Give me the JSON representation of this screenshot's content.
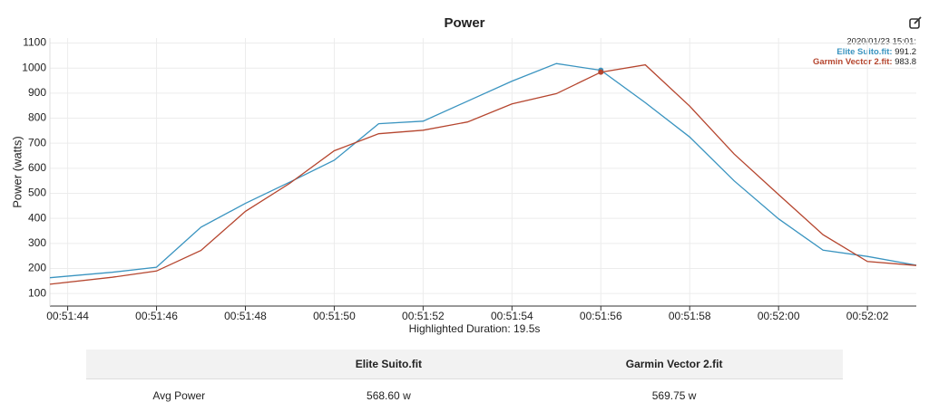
{
  "chart_data": {
    "type": "line",
    "title": "Power",
    "y_label": "Power (watts)",
    "x_label": "Highlighted Duration: 19.5s",
    "xlim": [
      3103.6,
      3123.1
    ],
    "ylim": [
      50,
      1120
    ],
    "grid": true,
    "xticks": [
      {
        "value": 3104,
        "label": "00:51:44"
      },
      {
        "value": 3106,
        "label": "00:51:46"
      },
      {
        "value": 3108,
        "label": "00:51:48"
      },
      {
        "value": 3110,
        "label": "00:51:50"
      },
      {
        "value": 3112,
        "label": "00:51:52"
      },
      {
        "value": 3114,
        "label": "00:51:54"
      },
      {
        "value": 3116,
        "label": "00:51:56"
      },
      {
        "value": 3118,
        "label": "00:51:58"
      },
      {
        "value": 3120,
        "label": "00:52:00"
      },
      {
        "value": 3122,
        "label": "00:52:02"
      }
    ],
    "yticks": [
      100,
      200,
      300,
      400,
      500,
      600,
      700,
      800,
      900,
      1000,
      1100
    ],
    "x": [
      3103.6,
      3105,
      3106,
      3107,
      3108,
      3109,
      3110,
      3111,
      3112,
      3113,
      3114,
      3115,
      3116,
      3117,
      3118,
      3119,
      3120,
      3121,
      3122,
      3123.1
    ],
    "series": [
      {
        "name": "Elite Suito.fit",
        "color": "#3a94c0",
        "values": [
          163,
          185,
          205,
          365,
          460,
          545,
          632,
          778,
          788,
          868,
          948,
          1018,
          991.2,
          862,
          725,
          550,
          398,
          273,
          248,
          213
        ]
      },
      {
        "name": "Garmin Vector 2.fit",
        "color": "#b5452e",
        "values": [
          137,
          165,
          190,
          272,
          428,
          540,
          670,
          738,
          752,
          785,
          857,
          898,
          983.8,
          1013,
          848,
          657,
          495,
          335,
          228,
          212
        ]
      }
    ],
    "highlight_index": 12,
    "tooltip": {
      "title": "2020/01/23 15:01:",
      "rows": [
        "Elite Suito.fit:",
        "Garmin Vector 2.fit:"
      ]
    }
  },
  "table": {
    "columns": [
      "Elite Suito.fit",
      "Garmin Vector 2.fit"
    ],
    "rows": [
      [
        "Avg Power",
        "568.60 w",
        "569.75 w"
      ]
    ]
  }
}
